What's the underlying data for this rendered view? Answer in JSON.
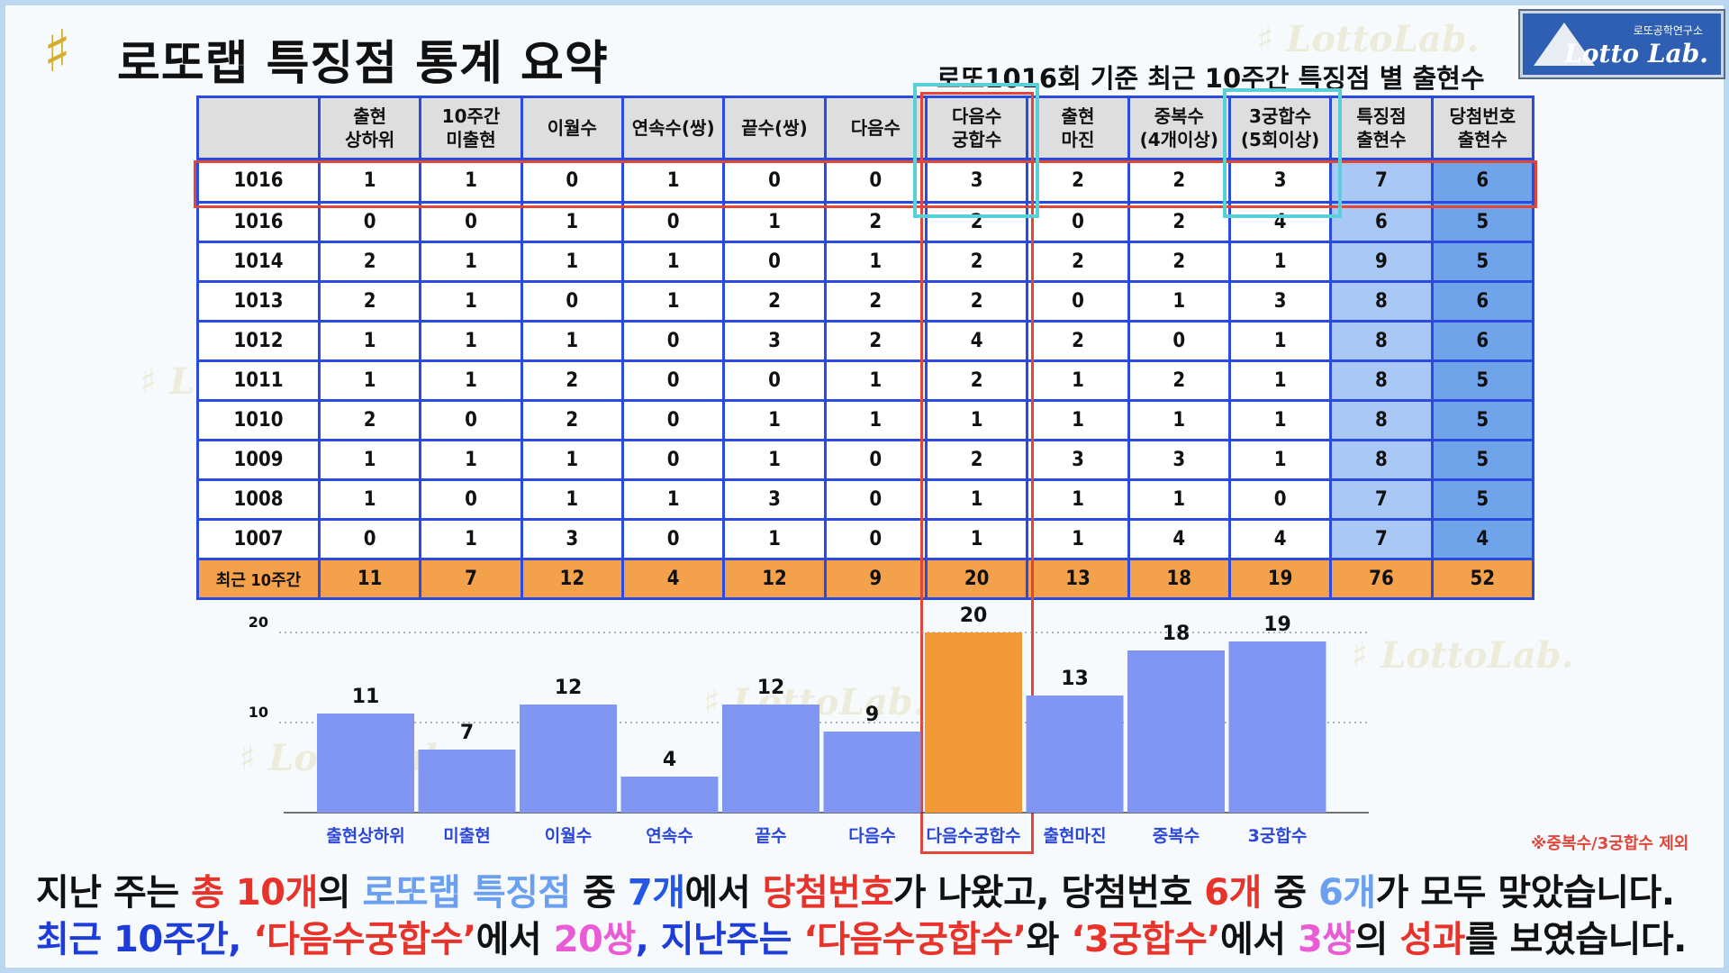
{
  "title_icon": "♯",
  "title": "로또랩 특징점 통계 요약",
  "subtitle": "로또1016회 기준 최근 10주간 특징점 별 출현수",
  "logo": {
    "small_text": "로또공학연구소",
    "brand": "Lotto Lab."
  },
  "watermark": "♯ LottoLab.",
  "table": {
    "headers": [
      "",
      "출현\n상하위",
      "10주간\n미출현",
      "이월수",
      "연속수(쌍)",
      "끝수(쌍)",
      "다음수",
      "다음수\n궁합수",
      "출현\n마진",
      "중복수\n(4개이상)",
      "3궁합수\n(5회이상)",
      "특징점\n출현수",
      "당첨번호\n출현수"
    ],
    "rows": [
      [
        "1016",
        "1",
        "1",
        "0",
        "1",
        "0",
        "0",
        "3",
        "2",
        "2",
        "3",
        "7",
        "6"
      ],
      [
        "1016",
        "0",
        "0",
        "1",
        "0",
        "1",
        "2",
        "2",
        "0",
        "2",
        "4",
        "6",
        "5"
      ],
      [
        "1014",
        "2",
        "1",
        "1",
        "1",
        "0",
        "1",
        "2",
        "2",
        "2",
        "1",
        "9",
        "5"
      ],
      [
        "1013",
        "2",
        "1",
        "0",
        "1",
        "2",
        "2",
        "2",
        "0",
        "1",
        "3",
        "8",
        "6"
      ],
      [
        "1012",
        "1",
        "1",
        "1",
        "0",
        "3",
        "2",
        "4",
        "2",
        "0",
        "1",
        "8",
        "6"
      ],
      [
        "1011",
        "1",
        "1",
        "2",
        "0",
        "0",
        "1",
        "2",
        "1",
        "2",
        "1",
        "8",
        "5"
      ],
      [
        "1010",
        "2",
        "0",
        "2",
        "0",
        "1",
        "1",
        "1",
        "1",
        "1",
        "1",
        "8",
        "5"
      ],
      [
        "1009",
        "1",
        "1",
        "1",
        "0",
        "1",
        "0",
        "2",
        "3",
        "3",
        "1",
        "8",
        "5"
      ],
      [
        "1008",
        "1",
        "0",
        "1",
        "1",
        "3",
        "0",
        "1",
        "1",
        "1",
        "0",
        "7",
        "5"
      ],
      [
        "1007",
        "0",
        "1",
        "3",
        "0",
        "1",
        "0",
        "1",
        "1",
        "4",
        "4",
        "7",
        "4"
      ]
    ],
    "total": [
      "최근 10주간",
      "11",
      "7",
      "12",
      "4",
      "12",
      "9",
      "20",
      "13",
      "18",
      "19",
      "76",
      "52"
    ]
  },
  "chart_data": {
    "type": "bar",
    "categories": [
      "출현상하위",
      "미출현",
      "이월수",
      "연속수",
      "끝수",
      "다음수",
      "다음수궁합수",
      "출현마진",
      "중복수",
      "3궁합수"
    ],
    "values": [
      11,
      7,
      12,
      4,
      12,
      9,
      20,
      13,
      18,
      19
    ],
    "highlight_index": 6,
    "yticks": [
      10,
      20
    ],
    "ylim": [
      0,
      20
    ],
    "grid": "dotted horizontal",
    "colors": {
      "bar": "#8096f2",
      "highlight": "#f19a37"
    }
  },
  "footnote": "※중복수/3궁합수 제외",
  "summary": {
    "line1": [
      {
        "t": "지난 주는 ",
        "c": ""
      },
      {
        "t": "총 10개",
        "c": "red"
      },
      {
        "t": "의 ",
        "c": ""
      },
      {
        "t": "로또랩 특징점",
        "c": "lblue"
      },
      {
        "t": " 중 ",
        "c": ""
      },
      {
        "t": "7개",
        "c": "blue"
      },
      {
        "t": "에서 ",
        "c": ""
      },
      {
        "t": "당첨번호",
        "c": "red"
      },
      {
        "t": "가 나왔고, 당첨번호 ",
        "c": ""
      },
      {
        "t": "6개",
        "c": "red"
      },
      {
        "t": " 중 ",
        "c": ""
      },
      {
        "t": "6개",
        "c": "lblue"
      },
      {
        "t": "가 모두 맞았습니다.",
        "c": ""
      }
    ],
    "line2": [
      {
        "t": "최근 10주간, ",
        "c": "navy"
      },
      {
        "t": "‘다음수궁합수’",
        "c": "red"
      },
      {
        "t": "에서 ",
        "c": ""
      },
      {
        "t": "20쌍",
        "c": "pink"
      },
      {
        "t": ", 지난주는 ",
        "c": "navy"
      },
      {
        "t": "‘다음수궁합수’",
        "c": "red"
      },
      {
        "t": "와 ",
        "c": ""
      },
      {
        "t": "‘3궁합수’",
        "c": "red"
      },
      {
        "t": "에서 ",
        "c": ""
      },
      {
        "t": "3쌍",
        "c": "pink"
      },
      {
        "t": "의 ",
        "c": ""
      },
      {
        "t": "성과",
        "c": "red"
      },
      {
        "t": "를 보였습니다.",
        "c": ""
      }
    ]
  }
}
